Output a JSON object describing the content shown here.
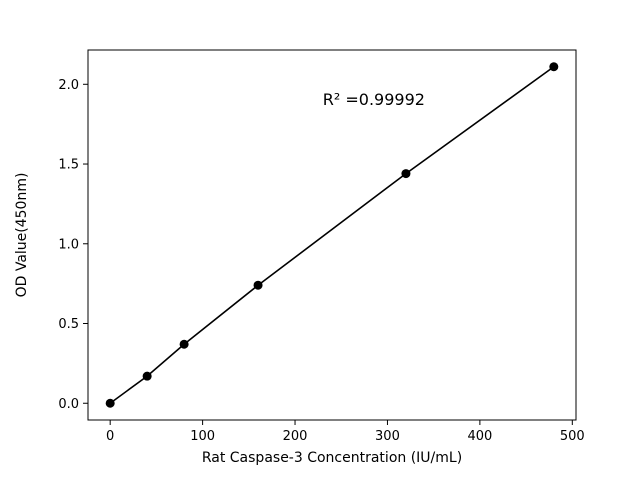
{
  "chart_data": {
    "type": "line",
    "title": "",
    "xlabel": "Rat Caspase-3 Concentration (IU/mL)",
    "ylabel": "OD Value(450nm)",
    "x": [
      0,
      40,
      80,
      160,
      320,
      480
    ],
    "y": [
      0.0,
      0.17,
      0.37,
      0.74,
      1.44,
      2.11
    ],
    "xticks": [
      0,
      100,
      200,
      300,
      400,
      500
    ],
    "yticks": [
      0.0,
      0.5,
      1.0,
      1.5,
      2.0
    ],
    "xlim": [
      -24,
      504
    ],
    "ylim": [
      -0.105,
      2.215
    ],
    "annotation": "R² =0.99992",
    "annotation_x": 230,
    "annotation_y": 1.87,
    "line_color": "#000000",
    "marker_color": "#000000",
    "background_color": "#ffffff",
    "grid": false,
    "legend": "none"
  }
}
